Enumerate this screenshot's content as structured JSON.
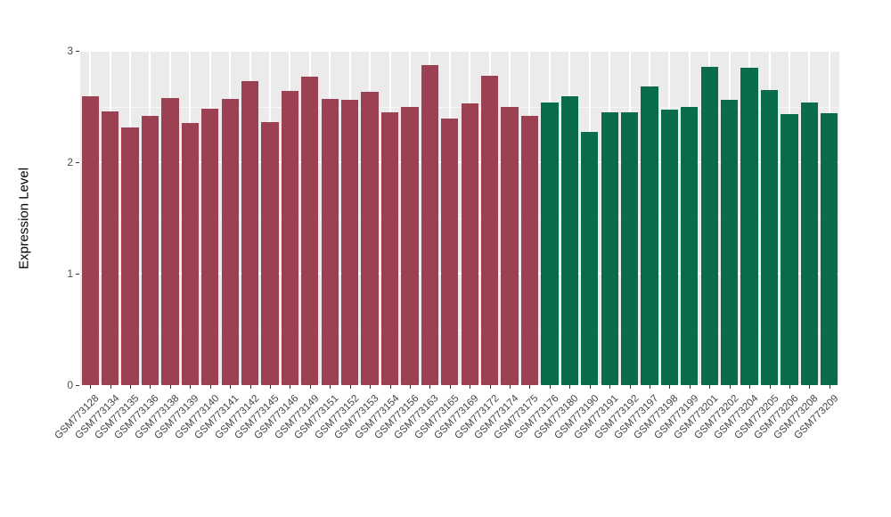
{
  "chart_data": {
    "type": "bar",
    "title": "",
    "xlabel": "",
    "ylabel": "Expression Level",
    "ylim": [
      0,
      3
    ],
    "yticks": [
      0,
      1,
      2,
      3
    ],
    "yminor": [
      0.5,
      1.5,
      2.5
    ],
    "grid": "on",
    "legend": "none",
    "panel_background": "#ebebeb",
    "gridline_color": "#ffffff",
    "categories": [
      "GSM773128",
      "GSM773134",
      "GSM773135",
      "GSM773136",
      "GSM773138",
      "GSM773139",
      "GSM773140",
      "GSM773141",
      "GSM773142",
      "GSM773145",
      "GSM773146",
      "GSM773149",
      "GSM773151",
      "GSM773152",
      "GSM773153",
      "GSM773154",
      "GSM773156",
      "GSM773163",
      "GSM773165",
      "GSM773169",
      "GSM773172",
      "GSM773174",
      "GSM773175",
      "GSM773176",
      "GSM773180",
      "GSM773190",
      "GSM773191",
      "GSM773192",
      "GSM773197",
      "GSM773198",
      "GSM773199",
      "GSM773201",
      "GSM773202",
      "GSM773204",
      "GSM773205",
      "GSM773206",
      "GSM773208",
      "GSM773209"
    ],
    "values": [
      2.59,
      2.46,
      2.31,
      2.42,
      2.58,
      2.35,
      2.48,
      2.57,
      2.73,
      2.36,
      2.64,
      2.77,
      2.57,
      2.56,
      2.63,
      2.45,
      2.5,
      2.87,
      2.39,
      2.53,
      2.78,
      2.5,
      2.42,
      2.54,
      2.59,
      2.27,
      2.45,
      2.45,
      2.68,
      2.47,
      2.5,
      2.86,
      2.56,
      2.85,
      2.65,
      2.43,
      2.54,
      2.44
    ],
    "groups": [
      0,
      0,
      0,
      0,
      0,
      0,
      0,
      0,
      0,
      0,
      0,
      0,
      0,
      0,
      0,
      0,
      0,
      0,
      0,
      0,
      0,
      0,
      0,
      1,
      1,
      1,
      1,
      1,
      1,
      1,
      1,
      1,
      1,
      1,
      1,
      1,
      1,
      1
    ],
    "group_colors": [
      "#9c4151",
      "#0b6b4d"
    ]
  }
}
